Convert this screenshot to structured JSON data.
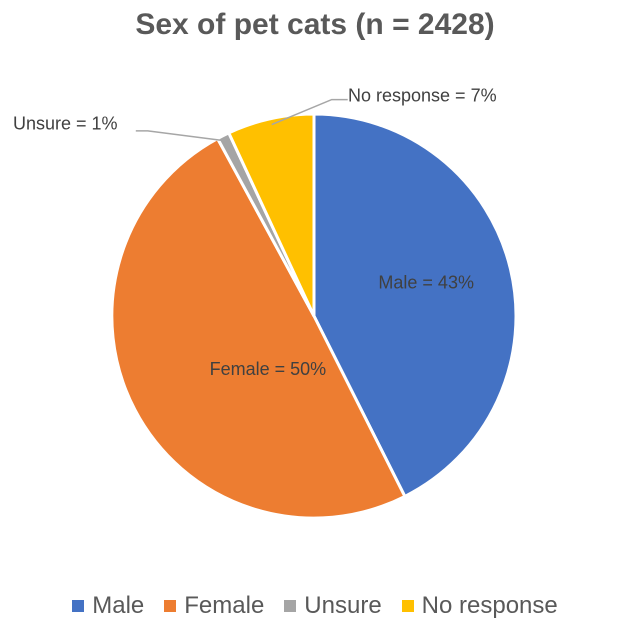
{
  "chart_data": {
    "type": "pie",
    "title": "Sex of pet cats (n = 2428)",
    "categories": [
      "Male",
      "Female",
      "Unsure",
      "No response"
    ],
    "values": [
      43,
      50,
      1,
      7
    ],
    "unit": "%",
    "data_labels": [
      "Male = 43%",
      "Female = 50%",
      "Unsure = 1%",
      "No response = 7%"
    ],
    "colors": [
      "#4472C4",
      "#ED7D31",
      "#A5A5A5",
      "#FFC000"
    ],
    "legend_position": "bottom"
  }
}
